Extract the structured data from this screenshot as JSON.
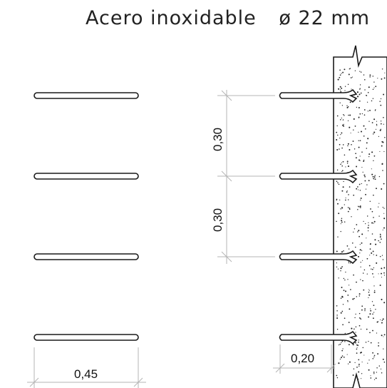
{
  "title": "Acero inoxidable",
  "diameter_label": "ø 22 mm",
  "dimensions": {
    "rung_width": "0,45",
    "spacing_1": "0,30",
    "spacing_2": "0,30",
    "wall_offset": "0,20"
  },
  "colors": {
    "line": "#1a1a1a",
    "dimension": "#b5b5b5",
    "concrete_dots": "#222222"
  },
  "rung_count": 4
}
